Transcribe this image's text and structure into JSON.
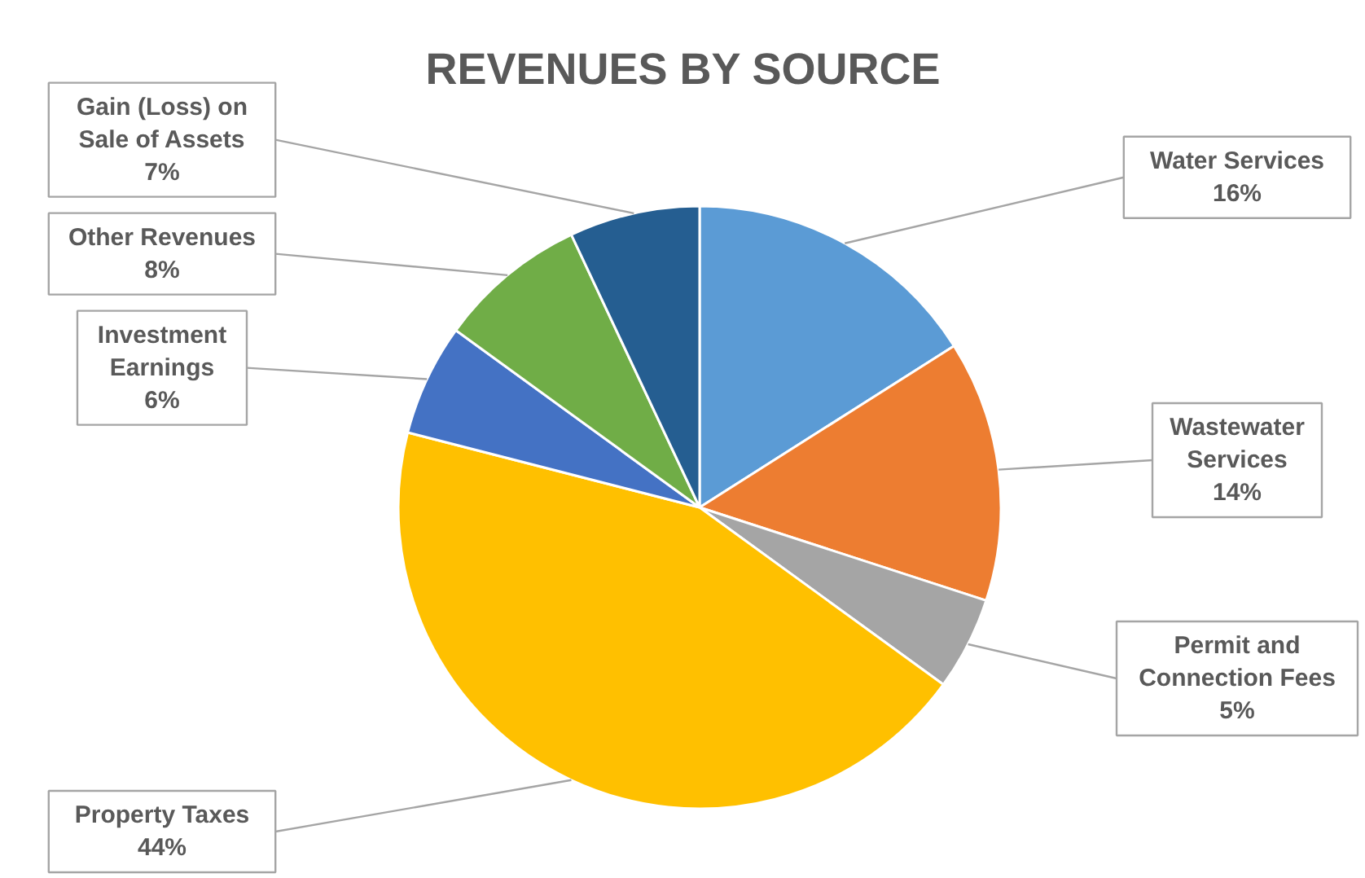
{
  "chart_data": {
    "type": "pie",
    "title": "REVENUES BY SOURCE",
    "categories": [
      "Water Services",
      "Wastewater Services",
      "Permit and Connection Fees",
      "Property Taxes",
      "Investment Earnings",
      "Other Revenues",
      "Gain (Loss) on Sale of Assets"
    ],
    "values": [
      16,
      14,
      5,
      44,
      6,
      8,
      7
    ],
    "colors": [
      "#5b9bd5",
      "#ed7d31",
      "#a5a5a5",
      "#ffc000",
      "#4472c4",
      "#70ad47",
      "#255e91"
    ],
    "value_labels": [
      "16%",
      "14%",
      "5%",
      "44%",
      "6%",
      "8%",
      "7%"
    ]
  }
}
